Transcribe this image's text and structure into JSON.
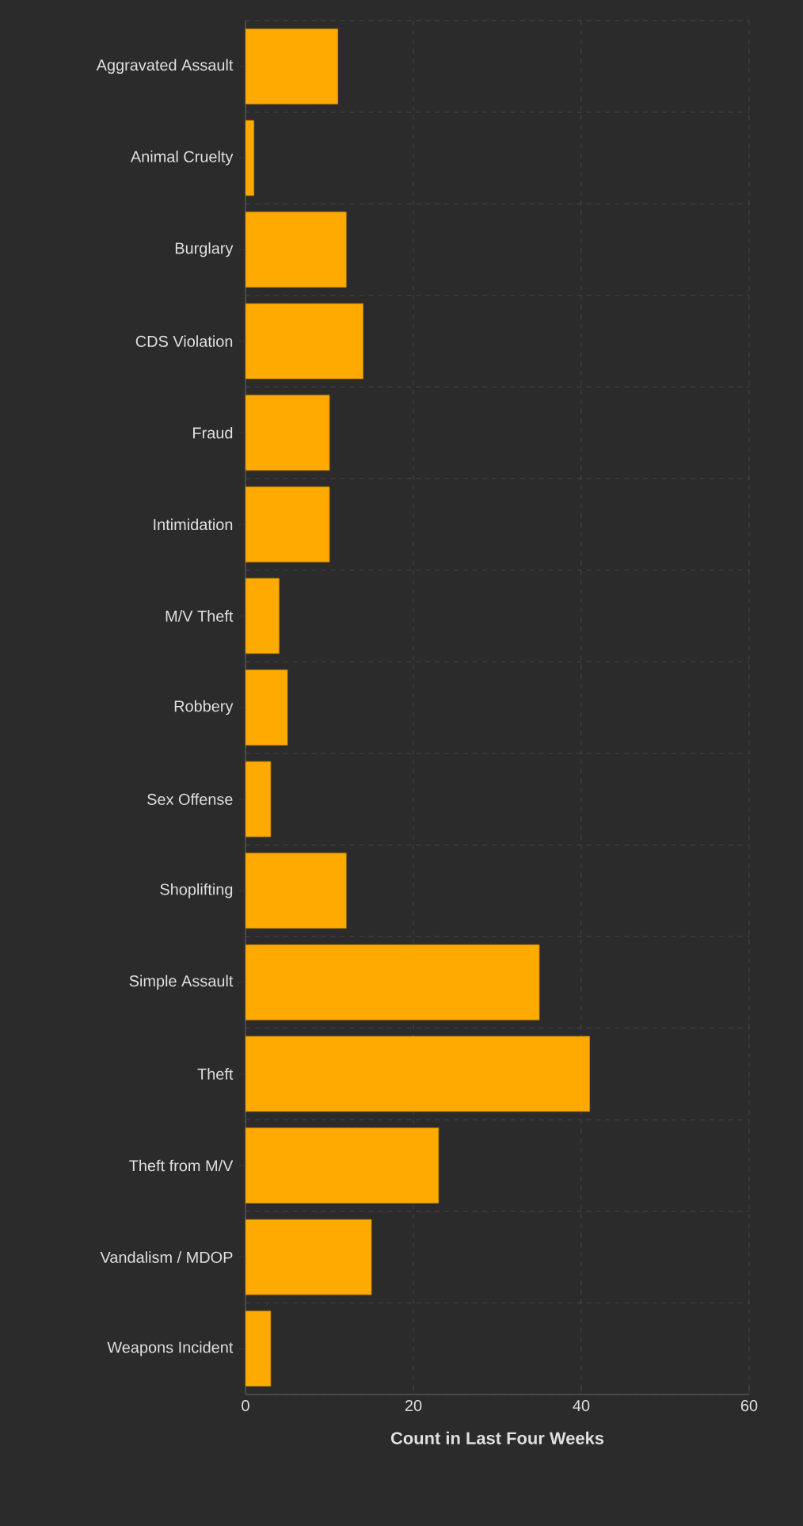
{
  "chart_data": {
    "type": "bar",
    "orientation": "horizontal",
    "xlabel": "Count in Last Four Weeks",
    "categories": [
      "Aggravated Assault",
      "Animal Cruelty",
      "Burglary",
      "CDS Violation",
      "Fraud",
      "Intimidation",
      "M/V Theft",
      "Robbery",
      "Sex Offense",
      "Shoplifting",
      "Simple Assault",
      "Theft",
      "Theft from M/V",
      "Vandalism / MDOP",
      "Weapons Incident"
    ],
    "values": [
      11,
      1,
      12,
      14,
      10,
      10,
      4,
      5,
      3,
      12,
      35,
      41,
      23,
      15,
      3
    ],
    "color": "#ffaa00",
    "xlim": [
      0,
      60
    ],
    "xticks": [
      0,
      20,
      40,
      60
    ],
    "grid": true
  }
}
